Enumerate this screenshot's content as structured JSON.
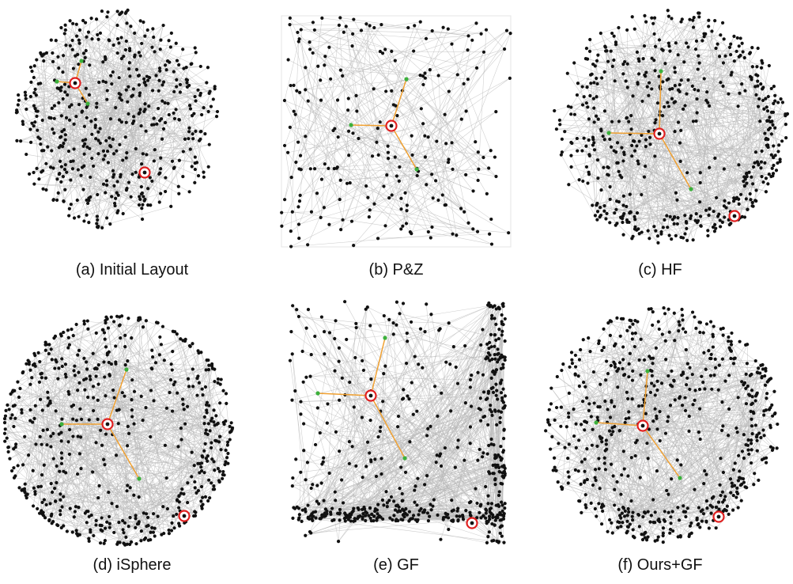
{
  "figure": {
    "panels": [
      {
        "id": "a",
        "caption": "(a) Initial Layout",
        "style": "initial"
      },
      {
        "id": "b",
        "caption": "(b) P&Z",
        "style": "pz"
      },
      {
        "id": "c",
        "caption": "(c) HF",
        "style": "hf"
      },
      {
        "id": "d",
        "caption": "(d) iSphere",
        "style": "isphere"
      },
      {
        "id": "e",
        "caption": "(e) GF",
        "style": "gf"
      },
      {
        "id": "f",
        "caption": "(f) Ours+GF",
        "style": "oursgf"
      }
    ],
    "colors": {
      "node": "#111111",
      "edge": "#b8b8b8",
      "highlight_edge": "#f0a030",
      "highlight_node": "#3cb03c",
      "focus_ring": "#e02020"
    }
  }
}
